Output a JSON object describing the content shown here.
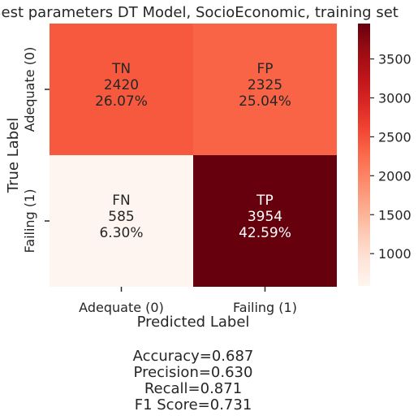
{
  "chart_data": {
    "type": "heatmap",
    "title": "Best parameters DT Model, SocioEconomic, training set",
    "xlabel": "Predicted Label",
    "ylabel": "True Label",
    "x_categories": [
      "Adequate (0)",
      "Failing (1)"
    ],
    "y_categories": [
      "Adequate (0)",
      "Failing (1)"
    ],
    "cells": [
      {
        "row": 0,
        "col": 0,
        "name": "TN",
        "value": 2420,
        "percent": "26.07%"
      },
      {
        "row": 0,
        "col": 1,
        "name": "FP",
        "value": 2325,
        "percent": "25.04%"
      },
      {
        "row": 1,
        "col": 0,
        "name": "FN",
        "value": 585,
        "percent": "6.30%"
      },
      {
        "row": 1,
        "col": 1,
        "name": "TP",
        "value": 3954,
        "percent": "42.59%"
      }
    ],
    "colormap": "Reds",
    "colorbar": {
      "min": 585,
      "max": 3954,
      "ticks": [
        1000,
        1500,
        2000,
        2500,
        3000,
        3500
      ]
    },
    "metrics": [
      "Accuracy=0.687",
      "Precision=0.630",
      "Recall=0.871",
      "F1 Score=0.731"
    ]
  }
}
